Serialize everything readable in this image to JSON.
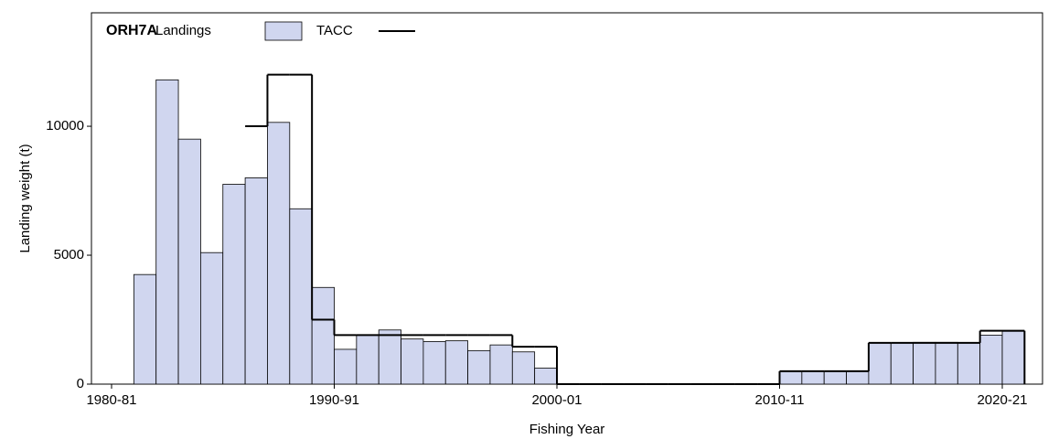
{
  "chart_data": {
    "type": "bar-step",
    "title": "ORH7A",
    "y_label": "Landing weight (t)",
    "x_label": "Fishing Year",
    "categories": [
      "1980-81",
      null,
      null,
      null,
      null,
      null,
      null,
      null,
      null,
      null,
      "1990-91",
      null,
      null,
      null,
      null,
      null,
      null,
      null,
      null,
      null,
      "2000-01",
      null,
      null,
      null,
      null,
      null,
      null,
      null,
      null,
      null,
      "2010-11",
      null,
      null,
      null,
      null,
      null,
      null,
      null,
      null,
      null,
      "2020-21"
    ],
    "series": [
      {
        "name": "Landings",
        "color": "#d0d6ef",
        "values": [
          0,
          4250,
          11800,
          9500,
          5100,
          7750,
          8000,
          10150,
          6800,
          3750,
          1350,
          1900,
          2100,
          1750,
          1650,
          1680,
          1300,
          1520,
          1250,
          620,
          0,
          0,
          0,
          0,
          0,
          0,
          0,
          0,
          0,
          0,
          480,
          500,
          500,
          500,
          1600,
          1600,
          1620,
          1620,
          1600,
          1900,
          2050
        ]
      },
      {
        "name": "TACC",
        "color": "#000000",
        "values": [
          null,
          null,
          null,
          null,
          null,
          null,
          10000,
          12000,
          12000,
          2500,
          1900,
          1900,
          1900,
          1900,
          1900,
          1900,
          1900,
          1900,
          1450,
          1450,
          0,
          0,
          0,
          0,
          0,
          0,
          0,
          0,
          0,
          0,
          500,
          500,
          500,
          500,
          1600,
          1600,
          1600,
          1600,
          1600,
          2070,
          2070
        ]
      }
    ],
    "ylim": [
      0,
      14400
    ],
    "yticks": [
      0,
      5000,
      10000
    ]
  }
}
